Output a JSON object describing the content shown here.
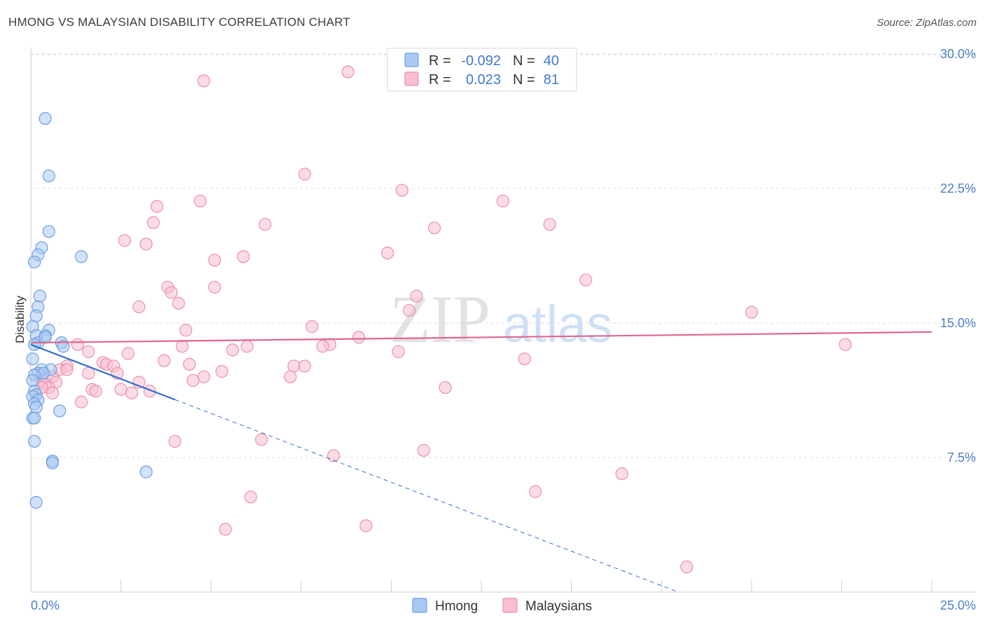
{
  "title": "HMONG VS MALAYSIAN DISABILITY CORRELATION CHART",
  "source": "Source: ZipAtlas.com",
  "watermark": {
    "zip": "ZIP",
    "atlas": "atlas"
  },
  "colors": {
    "hmong_fill": "#a9c9f2",
    "hmong_stroke": "#6d9fe0",
    "hmong_line": "#2f6fd1",
    "malay_fill": "#f7bfd0",
    "malay_stroke": "#ec8fae",
    "malay_line": "#e0678f",
    "grid": "#dddddd",
    "tick_label": "#4a7fc4"
  },
  "legend": {
    "hmong": {
      "r_label": "R = ",
      "r_value": "-0.092",
      "n_label": "N = ",
      "n_value": "40"
    },
    "malay": {
      "r_label": "R = ",
      "r_value": "0.023",
      "n_label": "N = ",
      "n_value": "81"
    }
  },
  "bottom_legend": {
    "hmong": "Hmong",
    "malay": "Malaysians"
  },
  "chart_data": {
    "type": "scatter",
    "title": "HMONG VS MALAYSIAN DISABILITY CORRELATION CHART",
    "xlabel": "",
    "ylabel": "Disability",
    "xlim": [
      0,
      25
    ],
    "ylim": [
      0,
      31
    ],
    "x_tick_labels": [
      "0.0%",
      "25.0%"
    ],
    "y_ticks": [
      7.5,
      15.0,
      22.5,
      30.0
    ],
    "y_tick_labels": [
      "7.5%",
      "15.0%",
      "22.5%",
      "30.0%"
    ],
    "series": [
      {
        "name": "Hmong",
        "trend": {
          "x0": 0,
          "y0": 13.8,
          "x1": 25,
          "y1": -5.4,
          "solid_until_x": 4.0
        },
        "points": [
          [
            0.4,
            26.4
          ],
          [
            0.5,
            23.2
          ],
          [
            0.5,
            20.1
          ],
          [
            0.3,
            19.2
          ],
          [
            0.2,
            18.8
          ],
          [
            1.4,
            18.7
          ],
          [
            0.1,
            18.4
          ],
          [
            0.25,
            16.5
          ],
          [
            0.2,
            15.9
          ],
          [
            0.15,
            15.4
          ],
          [
            0.05,
            14.8
          ],
          [
            0.5,
            14.6
          ],
          [
            0.4,
            14.3
          ],
          [
            0.15,
            14.3
          ],
          [
            0.2,
            13.9
          ],
          [
            0.1,
            13.8
          ],
          [
            0.85,
            13.9
          ],
          [
            0.9,
            13.7
          ],
          [
            0.05,
            13.0
          ],
          [
            0.55,
            12.4
          ],
          [
            0.3,
            12.4
          ],
          [
            0.2,
            12.2
          ],
          [
            0.35,
            12.2
          ],
          [
            0.1,
            12.1
          ],
          [
            0.05,
            11.8
          ],
          [
            0.1,
            11.2
          ],
          [
            0.15,
            11.0
          ],
          [
            0.05,
            10.9
          ],
          [
            0.2,
            10.7
          ],
          [
            0.1,
            10.5
          ],
          [
            0.15,
            10.3
          ],
          [
            0.8,
            10.1
          ],
          [
            0.05,
            9.7
          ],
          [
            0.1,
            9.7
          ],
          [
            0.1,
            8.4
          ],
          [
            0.6,
            7.3
          ],
          [
            0.6,
            7.2
          ],
          [
            3.2,
            6.7
          ],
          [
            0.15,
            5.0
          ],
          [
            0.4,
            14.2
          ]
        ]
      },
      {
        "name": "Malaysians",
        "trend": {
          "x0": 0,
          "y0": 13.9,
          "x1": 25,
          "y1": 14.5
        },
        "points": [
          [
            8.8,
            29.0
          ],
          [
            4.8,
            28.5
          ],
          [
            7.6,
            23.3
          ],
          [
            10.3,
            22.4
          ],
          [
            4.7,
            21.8
          ],
          [
            13.1,
            21.8
          ],
          [
            3.5,
            21.5
          ],
          [
            11.2,
            20.3
          ],
          [
            6.5,
            20.5
          ],
          [
            14.4,
            20.5
          ],
          [
            3.4,
            20.6
          ],
          [
            2.6,
            19.6
          ],
          [
            3.2,
            19.4
          ],
          [
            5.9,
            18.7
          ],
          [
            5.1,
            18.5
          ],
          [
            9.9,
            18.9
          ],
          [
            15.4,
            17.4
          ],
          [
            3.8,
            17.0
          ],
          [
            5.1,
            17.0
          ],
          [
            3.9,
            16.7
          ],
          [
            10.7,
            16.5
          ],
          [
            4.1,
            16.1
          ],
          [
            3.0,
            15.9
          ],
          [
            20.0,
            15.6
          ],
          [
            10.5,
            15.7
          ],
          [
            7.8,
            14.8
          ],
          [
            4.3,
            14.6
          ],
          [
            1.3,
            13.8
          ],
          [
            4.2,
            13.7
          ],
          [
            6.0,
            13.7
          ],
          [
            8.3,
            13.8
          ],
          [
            9.1,
            14.2
          ],
          [
            22.6,
            13.8
          ],
          [
            1.6,
            13.4
          ],
          [
            2.7,
            13.3
          ],
          [
            5.6,
            13.5
          ],
          [
            8.1,
            13.7
          ],
          [
            10.2,
            13.4
          ],
          [
            3.7,
            12.9
          ],
          [
            4.4,
            12.7
          ],
          [
            7.3,
            12.6
          ],
          [
            7.6,
            12.6
          ],
          [
            13.7,
            13.0
          ],
          [
            1.0,
            12.6
          ],
          [
            0.8,
            12.4
          ],
          [
            1.0,
            12.4
          ],
          [
            2.0,
            12.8
          ],
          [
            2.1,
            12.7
          ],
          [
            2.3,
            12.6
          ],
          [
            2.4,
            12.2
          ],
          [
            5.3,
            12.3
          ],
          [
            0.6,
            12.0
          ],
          [
            1.6,
            12.2
          ],
          [
            3.0,
            11.7
          ],
          [
            4.8,
            12.0
          ],
          [
            4.5,
            11.8
          ],
          [
            7.2,
            12.0
          ],
          [
            0.3,
            12.1
          ],
          [
            0.3,
            11.8
          ],
          [
            0.4,
            11.6
          ],
          [
            0.7,
            11.7
          ],
          [
            0.5,
            11.4
          ],
          [
            0.3,
            11.4
          ],
          [
            0.6,
            11.1
          ],
          [
            1.7,
            11.3
          ],
          [
            1.8,
            11.2
          ],
          [
            2.5,
            11.3
          ],
          [
            2.8,
            11.1
          ],
          [
            3.3,
            11.2
          ],
          [
            1.4,
            10.6
          ],
          [
            11.5,
            11.4
          ],
          [
            4.0,
            8.4
          ],
          [
            6.4,
            8.5
          ],
          [
            10.9,
            7.9
          ],
          [
            8.4,
            7.6
          ],
          [
            16.4,
            6.6
          ],
          [
            14.0,
            5.6
          ],
          [
            6.1,
            5.3
          ],
          [
            5.4,
            3.5
          ],
          [
            9.3,
            3.7
          ],
          [
            18.2,
            1.4
          ]
        ]
      }
    ]
  }
}
